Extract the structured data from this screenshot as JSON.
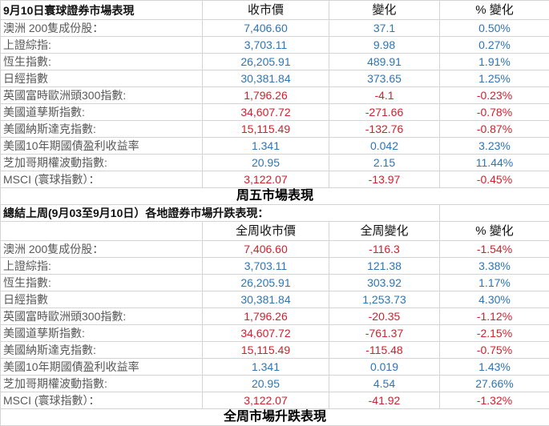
{
  "daily": {
    "title": "9月10日寰球證券市場表現",
    "headers": [
      "收市價",
      "變化",
      "% 變化"
    ],
    "rows": [
      {
        "name": "澳洲 200隻成份股：",
        "close": "7,406.60",
        "change": "37.1",
        "pct": "0.50%",
        "dir": "pos"
      },
      {
        "name": "上證綜指:",
        "close": "3,703.11",
        "change": "9.98",
        "pct": "0.27%",
        "dir": "pos"
      },
      {
        "name": "恆生指數:",
        "close": "26,205.91",
        "change": "489.91",
        "pct": "1.91%",
        "dir": "pos"
      },
      {
        "name": "日經指數",
        "close": "30,381.84",
        "change": "373.65",
        "pct": "1.25%",
        "dir": "pos"
      },
      {
        "name": "英國富時歐洲頭300指數:",
        "close": "1,796.26",
        "change": "-4.1",
        "pct": "-0.23%",
        "dir": "neg"
      },
      {
        "name": "美國道孳斯指數:",
        "close": "34,607.72",
        "change": "-271.66",
        "pct": "-0.78%",
        "dir": "neg"
      },
      {
        "name": "美國納斯達克指數:",
        "close": "15,115.49",
        "change": "-132.76",
        "pct": "-0.87%",
        "dir": "neg"
      },
      {
        "name": "美國10年期國債盈利收益率",
        "close": "1.341",
        "change": "0.042",
        "pct": "3.23%",
        "dir": "pos"
      },
      {
        "name": "芝加哥期權波動指數:",
        "close": "20.95",
        "change": "2.15",
        "pct": "11.44%",
        "dir": "pos"
      },
      {
        "name": "MSCI (寰球指數）：",
        "close": "3,122.07",
        "change": "-13.97",
        "pct": "-0.45%",
        "dir": "neg"
      }
    ],
    "caption": "周五市場表現"
  },
  "weekly": {
    "title": "總結上周(9月03至9月10日）各地證券市場升跌表現：",
    "headers": [
      "全周收市價",
      "全周變化",
      "% 變化"
    ],
    "rows": [
      {
        "name": "澳洲 200隻成份股：",
        "close": "7,406.60",
        "change": "-116.3",
        "pct": "-1.54%",
        "dir": "neg"
      },
      {
        "name": "上證綜指:",
        "close": "3,703.11",
        "change": "121.38",
        "pct": "3.38%",
        "dir": "pos"
      },
      {
        "name": "恆生指數:",
        "close": "26,205.91",
        "change": "303.92",
        "pct": "1.17%",
        "dir": "pos"
      },
      {
        "name": "日經指數",
        "close": "30,381.84",
        "change": "1,253.73",
        "pct": "4.30%",
        "dir": "pos"
      },
      {
        "name": "英國富時歐洲頭300指數:",
        "close": "1,796.26",
        "change": "-20.35",
        "pct": "-1.12%",
        "dir": "neg"
      },
      {
        "name": "美國道孳斯指數:",
        "close": "34,607.72",
        "change": "-761.37",
        "pct": "-2.15%",
        "dir": "neg"
      },
      {
        "name": "美國納斯達克指數:",
        "close": "15,115.49",
        "change": "-115.48",
        "pct": "-0.75%",
        "dir": "neg"
      },
      {
        "name": "美國10年期國債盈利收益率",
        "close": "1.341",
        "change": "0.019",
        "pct": "1.43%",
        "dir": "pos"
      },
      {
        "name": "芝加哥期權波動指數:",
        "close": "20.95",
        "change": "4.54",
        "pct": "27.66%",
        "dir": "pos"
      },
      {
        "name": "MSCI (寰球指數）：",
        "close": "3,122.07",
        "change": "-41.92",
        "pct": "-1.32%",
        "dir": "neg"
      }
    ],
    "caption": "全周市場升跌表現"
  },
  "colors": {
    "positive": "#2e75b6",
    "negative": "#d0212e",
    "gridline": "#d4d4d4"
  }
}
